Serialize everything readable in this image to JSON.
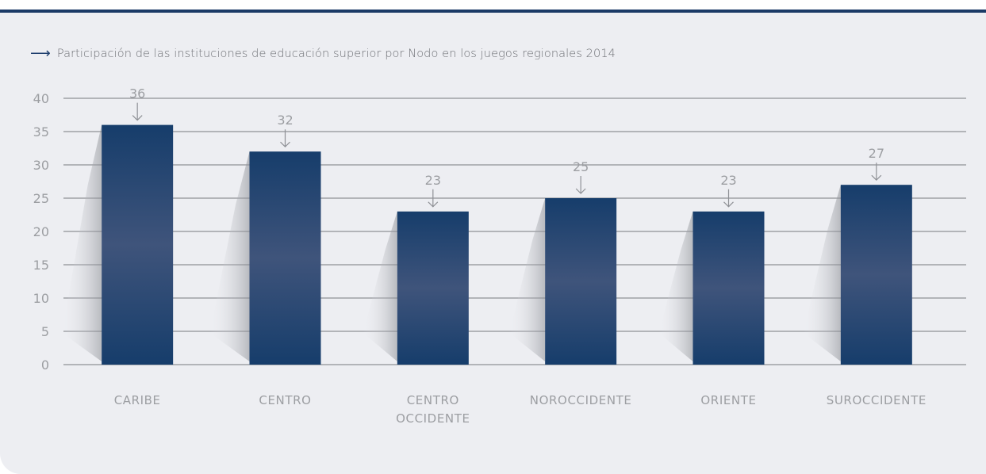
{
  "caption": {
    "arrow_icon": "arrow-right-icon",
    "text": "Participación de las instituciones de educación superior por Nodo en los juegos regionales  2014"
  },
  "colors": {
    "bar_top": "#163d6b",
    "bar_mid": "#3f547b",
    "bar_bottom": "#163d6b",
    "grid": "#8f9196",
    "text": "#9c9ea2",
    "accent": "#1b3a66",
    "panel": "#edeef2"
  },
  "chart_data": {
    "type": "bar",
    "title": "Participación de las instituciones de educación superior por Nodo en los juegos regionales  2014",
    "categories": [
      [
        "CARIBE"
      ],
      [
        "CENTRO"
      ],
      [
        "CENTRO",
        "OCCIDENTE"
      ],
      [
        "NOROCCIDENTE"
      ],
      [
        "ORIENTE"
      ],
      [
        "SUROCCIDENTE"
      ]
    ],
    "values": [
      36,
      32,
      23,
      25,
      23,
      27
    ],
    "ylim": [
      0,
      40
    ],
    "yticks": [
      0,
      5,
      10,
      15,
      20,
      25,
      30,
      35,
      40
    ],
    "grid": true,
    "data_labels": [
      "36",
      "32",
      "23",
      "25",
      "23",
      "27"
    ]
  }
}
